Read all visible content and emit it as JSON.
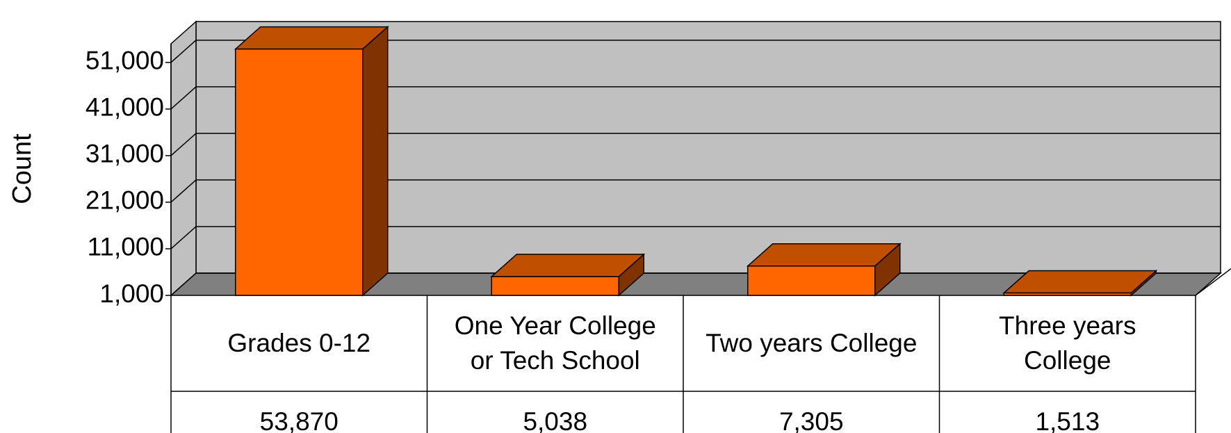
{
  "chart_data": {
    "type": "bar3d",
    "y_label": "Count",
    "categories": [
      "Grades 0-12",
      "One Year College\nor Tech School",
      "Two years College",
      "Three years\nCollege"
    ],
    "values": [
      53870,
      5038,
      7305,
      1513
    ],
    "value_labels": [
      "53,870",
      "5,038",
      "7,305",
      "1,513"
    ],
    "color": "#ff6600",
    "ylim": [
      1000,
      55000
    ],
    "yticks": [
      {
        "value": 1000,
        "label": "1,000"
      },
      {
        "value": 11000,
        "label": "11,000"
      },
      {
        "value": 21000,
        "label": "21,000"
      },
      {
        "value": 31000,
        "label": "31,000"
      },
      {
        "value": 41000,
        "label": "41,000"
      },
      {
        "value": 51000,
        "label": "51,000"
      }
    ],
    "grid": true
  }
}
